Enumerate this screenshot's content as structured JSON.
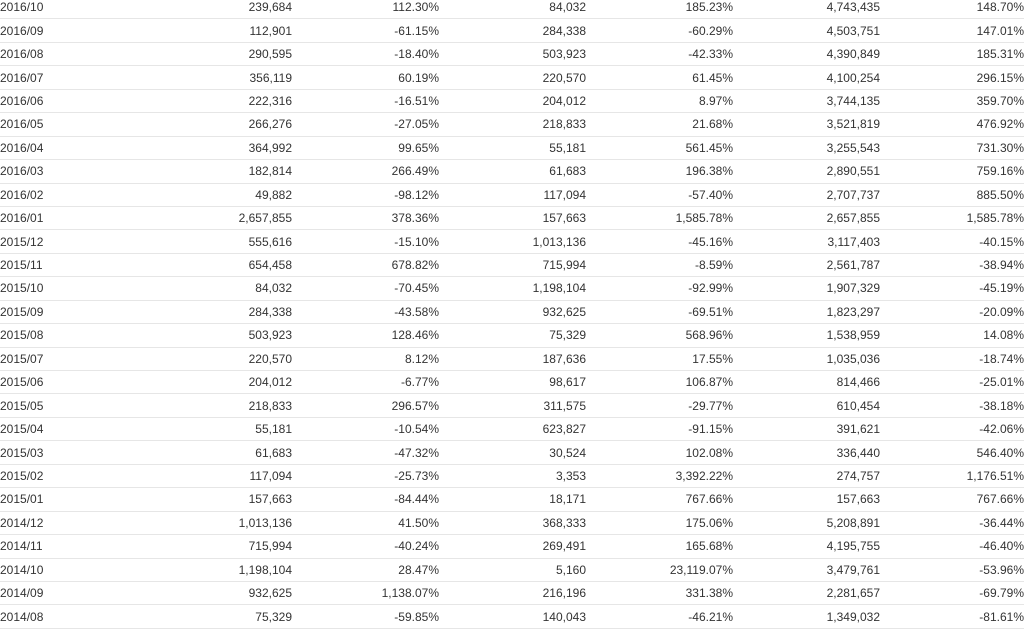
{
  "colors": {
    "text": "#333333",
    "negative": "#f0303a",
    "row_border": "#e6e6e6"
  },
  "rows": [
    [
      "2016/10",
      "239,684",
      "112.30%",
      "84,032",
      "185.23%",
      "4,743,435",
      "148.70%"
    ],
    [
      "2016/09",
      "112,901",
      "-61.15%",
      "284,338",
      "-60.29%",
      "4,503,751",
      "147.01%"
    ],
    [
      "2016/08",
      "290,595",
      "-18.40%",
      "503,923",
      "-42.33%",
      "4,390,849",
      "185.31%"
    ],
    [
      "2016/07",
      "356,119",
      "60.19%",
      "220,570",
      "61.45%",
      "4,100,254",
      "296.15%"
    ],
    [
      "2016/06",
      "222,316",
      "-16.51%",
      "204,012",
      "8.97%",
      "3,744,135",
      "359.70%"
    ],
    [
      "2016/05",
      "266,276",
      "-27.05%",
      "218,833",
      "21.68%",
      "3,521,819",
      "476.92%"
    ],
    [
      "2016/04",
      "364,992",
      "99.65%",
      "55,181",
      "561.45%",
      "3,255,543",
      "731.30%"
    ],
    [
      "2016/03",
      "182,814",
      "266.49%",
      "61,683",
      "196.38%",
      "2,890,551",
      "759.16%"
    ],
    [
      "2016/02",
      "49,882",
      "-98.12%",
      "117,094",
      "-57.40%",
      "2,707,737",
      "885.50%"
    ],
    [
      "2016/01",
      "2,657,855",
      "378.36%",
      "157,663",
      "1,585.78%",
      "2,657,855",
      "1,585.78%"
    ],
    [
      "2015/12",
      "555,616",
      "-15.10%",
      "1,013,136",
      "-45.16%",
      "3,117,403",
      "-40.15%"
    ],
    [
      "2015/11",
      "654,458",
      "678.82%",
      "715,994",
      "-8.59%",
      "2,561,787",
      "-38.94%"
    ],
    [
      "2015/10",
      "84,032",
      "-70.45%",
      "1,198,104",
      "-92.99%",
      "1,907,329",
      "-45.19%"
    ],
    [
      "2015/09",
      "284,338",
      "-43.58%",
      "932,625",
      "-69.51%",
      "1,823,297",
      "-20.09%"
    ],
    [
      "2015/08",
      "503,923",
      "128.46%",
      "75,329",
      "568.96%",
      "1,538,959",
      "14.08%"
    ],
    [
      "2015/07",
      "220,570",
      "8.12%",
      "187,636",
      "17.55%",
      "1,035,036",
      "-18.74%"
    ],
    [
      "2015/06",
      "204,012",
      "-6.77%",
      "98,617",
      "106.87%",
      "814,466",
      "-25.01%"
    ],
    [
      "2015/05",
      "218,833",
      "296.57%",
      "311,575",
      "-29.77%",
      "610,454",
      "-38.18%"
    ],
    [
      "2015/04",
      "55,181",
      "-10.54%",
      "623,827",
      "-91.15%",
      "391,621",
      "-42.06%"
    ],
    [
      "2015/03",
      "61,683",
      "-47.32%",
      "30,524",
      "102.08%",
      "336,440",
      "546.40%"
    ],
    [
      "2015/02",
      "117,094",
      "-25.73%",
      "3,353",
      "3,392.22%",
      "274,757",
      "1,176.51%"
    ],
    [
      "2015/01",
      "157,663",
      "-84.44%",
      "18,171",
      "767.66%",
      "157,663",
      "767.66%"
    ],
    [
      "2014/12",
      "1,013,136",
      "41.50%",
      "368,333",
      "175.06%",
      "5,208,891",
      "-36.44%"
    ],
    [
      "2014/11",
      "715,994",
      "-40.24%",
      "269,491",
      "165.68%",
      "4,195,755",
      "-46.40%"
    ],
    [
      "2014/10",
      "1,198,104",
      "28.47%",
      "5,160",
      "23,119.07%",
      "3,479,761",
      "-53.96%"
    ],
    [
      "2014/09",
      "932,625",
      "1,138.07%",
      "216,196",
      "331.38%",
      "2,281,657",
      "-69.79%"
    ],
    [
      "2014/08",
      "75,329",
      "-59.85%",
      "140,043",
      "-46.21%",
      "1,349,032",
      "-81.61%"
    ]
  ]
}
